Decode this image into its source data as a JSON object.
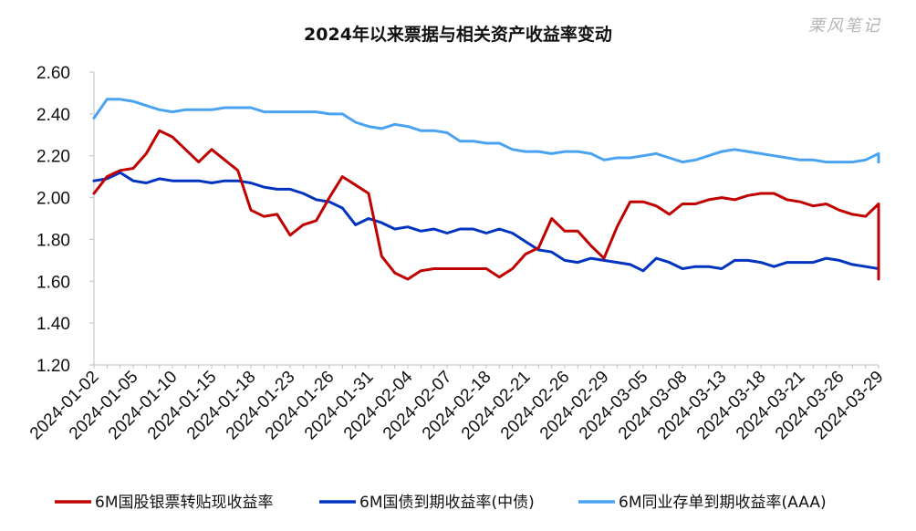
{
  "chart_data": {
    "type": "line",
    "title": "2024年以来票据与相关资产收益率变动",
    "watermark": "栗风笔记",
    "ylim": [
      1.2,
      2.6
    ],
    "y_ticks": [
      "2.60",
      "2.40",
      "2.20",
      "2.00",
      "1.80",
      "1.60",
      "1.40",
      "1.20"
    ],
    "y_tick_values": [
      2.6,
      2.4,
      2.2,
      2.0,
      1.8,
      1.6,
      1.4,
      1.2
    ],
    "x_ticks": [
      "2024-01-02",
      "2024-01-05",
      "2024-01-10",
      "2024-01-15",
      "2024-01-18",
      "2024-01-23",
      "2024-01-26",
      "2024-01-31",
      "2024-02-04",
      "2024-02-07",
      "2024-02-18",
      "2024-02-21",
      "2024-02-26",
      "2024-02-29",
      "2024-03-05",
      "2024-03-08",
      "2024-03-13",
      "2024-03-18",
      "2024-03-21",
      "2024-03-26",
      "2024-03-29"
    ],
    "x_tick_indices": [
      0,
      3,
      6,
      9,
      12,
      15,
      18,
      21,
      24,
      27,
      30,
      33,
      36,
      39,
      42,
      45,
      48,
      51,
      54,
      57,
      60
    ],
    "n_points": 61,
    "grid": false,
    "legend_position": "bottom",
    "series": [
      {
        "name": "6M国股银票转贴现收益率",
        "color": "#c00000",
        "values": [
          2.02,
          2.1,
          2.13,
          2.14,
          2.21,
          2.32,
          2.29,
          2.23,
          2.17,
          2.23,
          2.18,
          2.13,
          1.94,
          1.91,
          1.92,
          1.82,
          1.87,
          1.89,
          2.0,
          2.1,
          2.06,
          2.02,
          1.72,
          1.64,
          1.61,
          1.65,
          1.66,
          1.66,
          1.66,
          1.66,
          1.66,
          1.62,
          1.66,
          1.73,
          1.76,
          1.9,
          1.84,
          1.84,
          1.77,
          1.71,
          1.86,
          1.98,
          1.98,
          1.96,
          1.92,
          1.97,
          1.97,
          1.99,
          2.0,
          1.99,
          2.01,
          2.02,
          2.02,
          1.99,
          1.98,
          1.96,
          1.97,
          1.94,
          1.92,
          1.91,
          1.97
        ]
      },
      {
        "name": "6M国债到期收益率(中债)",
        "color": "#0033c0",
        "values": [
          2.08,
          2.09,
          2.12,
          2.08,
          2.07,
          2.09,
          2.08,
          2.08,
          2.08,
          2.07,
          2.08,
          2.08,
          2.07,
          2.05,
          2.04,
          2.04,
          2.02,
          1.99,
          1.98,
          1.95,
          1.87,
          1.9,
          1.88,
          1.85,
          1.86,
          1.84,
          1.85,
          1.83,
          1.85,
          1.85,
          1.83,
          1.85,
          1.83,
          1.79,
          1.75,
          1.74,
          1.7,
          1.69,
          1.71,
          1.7,
          1.69,
          1.68,
          1.65,
          1.71,
          1.69,
          1.66,
          1.67,
          1.67,
          1.66,
          1.7,
          1.7,
          1.69,
          1.67,
          1.69,
          1.69,
          1.69,
          1.71,
          1.7,
          1.68,
          1.67,
          1.66
        ]
      },
      {
        "name": "6M同业存单到期收益率(AAA)",
        "color": "#4aa3f0",
        "values": [
          2.38,
          2.47,
          2.47,
          2.46,
          2.44,
          2.42,
          2.41,
          2.42,
          2.42,
          2.42,
          2.43,
          2.43,
          2.43,
          2.41,
          2.41,
          2.41,
          2.41,
          2.41,
          2.4,
          2.4,
          2.36,
          2.34,
          2.33,
          2.35,
          2.34,
          2.32,
          2.32,
          2.31,
          2.27,
          2.27,
          2.26,
          2.26,
          2.23,
          2.22,
          2.22,
          2.21,
          2.22,
          2.22,
          2.21,
          2.18,
          2.19,
          2.19,
          2.2,
          2.21,
          2.19,
          2.17,
          2.18,
          2.2,
          2.22,
          2.23,
          2.22,
          2.21,
          2.2,
          2.19,
          2.18,
          2.18,
          2.17,
          2.17,
          2.17,
          2.18,
          2.21
        ]
      }
    ],
    "final_points": [
      1.61,
      1.65,
      2.17
    ]
  }
}
